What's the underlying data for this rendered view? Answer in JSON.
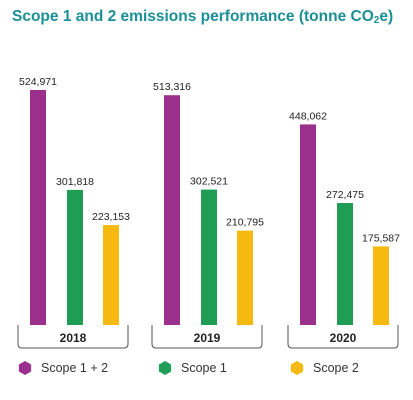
{
  "title_main": "Scope 1 and 2 emissions performance (tonne CO",
  "title_sub": "2",
  "title_end": "e)",
  "colors": {
    "title": "#1a8f96",
    "scope12": "#9b2f8c",
    "scope1": "#1f9d55",
    "scope2": "#f5b90f",
    "axis": "#555555"
  },
  "chart_data": {
    "type": "bar",
    "title": "Scope 1 and 2 emissions performance (tonne CO2e)",
    "categories": [
      "2018",
      "2019",
      "2020"
    ],
    "series": [
      {
        "name": "Scope 1 + 2",
        "values": [
          524971,
          513316,
          448062
        ],
        "labels": [
          "524,971",
          "513,316",
          "448,062"
        ]
      },
      {
        "name": "Scope 1",
        "values": [
          301818,
          302521,
          272475
        ],
        "labels": [
          "301,818",
          "302,521",
          "272,475"
        ]
      },
      {
        "name": "Scope 2",
        "values": [
          223153,
          210795,
          175587
        ],
        "labels": [
          "223,153",
          "210,795",
          "175,587"
        ]
      }
    ],
    "ylim": [
      0,
      524971
    ],
    "grid": false,
    "legend": "bottom"
  },
  "legend": [
    {
      "label": "Scope 1 + 2",
      "color": "#9b2f8c"
    },
    {
      "label": "Scope 1",
      "color": "#1f9d55"
    },
    {
      "label": "Scope 2",
      "color": "#f5b90f"
    }
  ]
}
